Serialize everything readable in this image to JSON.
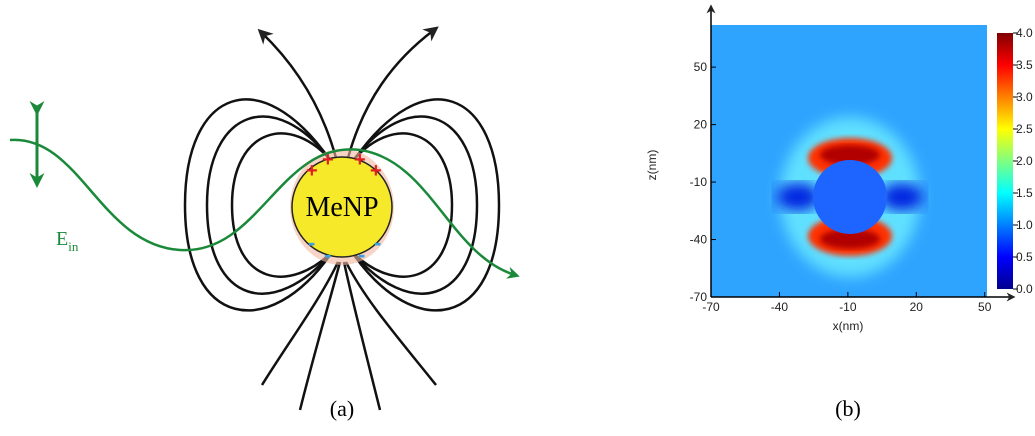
{
  "panel_a": {
    "particle_label": "MeNP",
    "field_symbol": "E",
    "field_subscript": "in",
    "caption": "(a)"
  },
  "panel_b": {
    "x_label": "x(nm)",
    "y_label": "z(nm)",
    "xlim": [
      -70,
      51
    ],
    "ylim": [
      -70,
      72
    ],
    "xticks": [
      -70,
      -40,
      -10,
      20,
      50
    ],
    "yticks": [
      -70,
      -40,
      -10,
      20,
      50
    ],
    "colorbar_lim": [
      0,
      4
    ],
    "colorbar_ticks": [
      {
        "value": 0,
        "label": "0.0"
      },
      {
        "value": 0.5,
        "label": "0.5"
      },
      {
        "value": 1,
        "label": "1.0"
      },
      {
        "value": 1.5,
        "label": "1.5"
      },
      {
        "value": 2,
        "label": "2.0"
      },
      {
        "value": 2.5,
        "label": "2.5"
      },
      {
        "value": 3,
        "label": "3.0"
      },
      {
        "value": 3.5,
        "label": "3.5"
      },
      {
        "value": 4,
        "label": "4.0"
      }
    ],
    "caption": "(b)"
  }
}
